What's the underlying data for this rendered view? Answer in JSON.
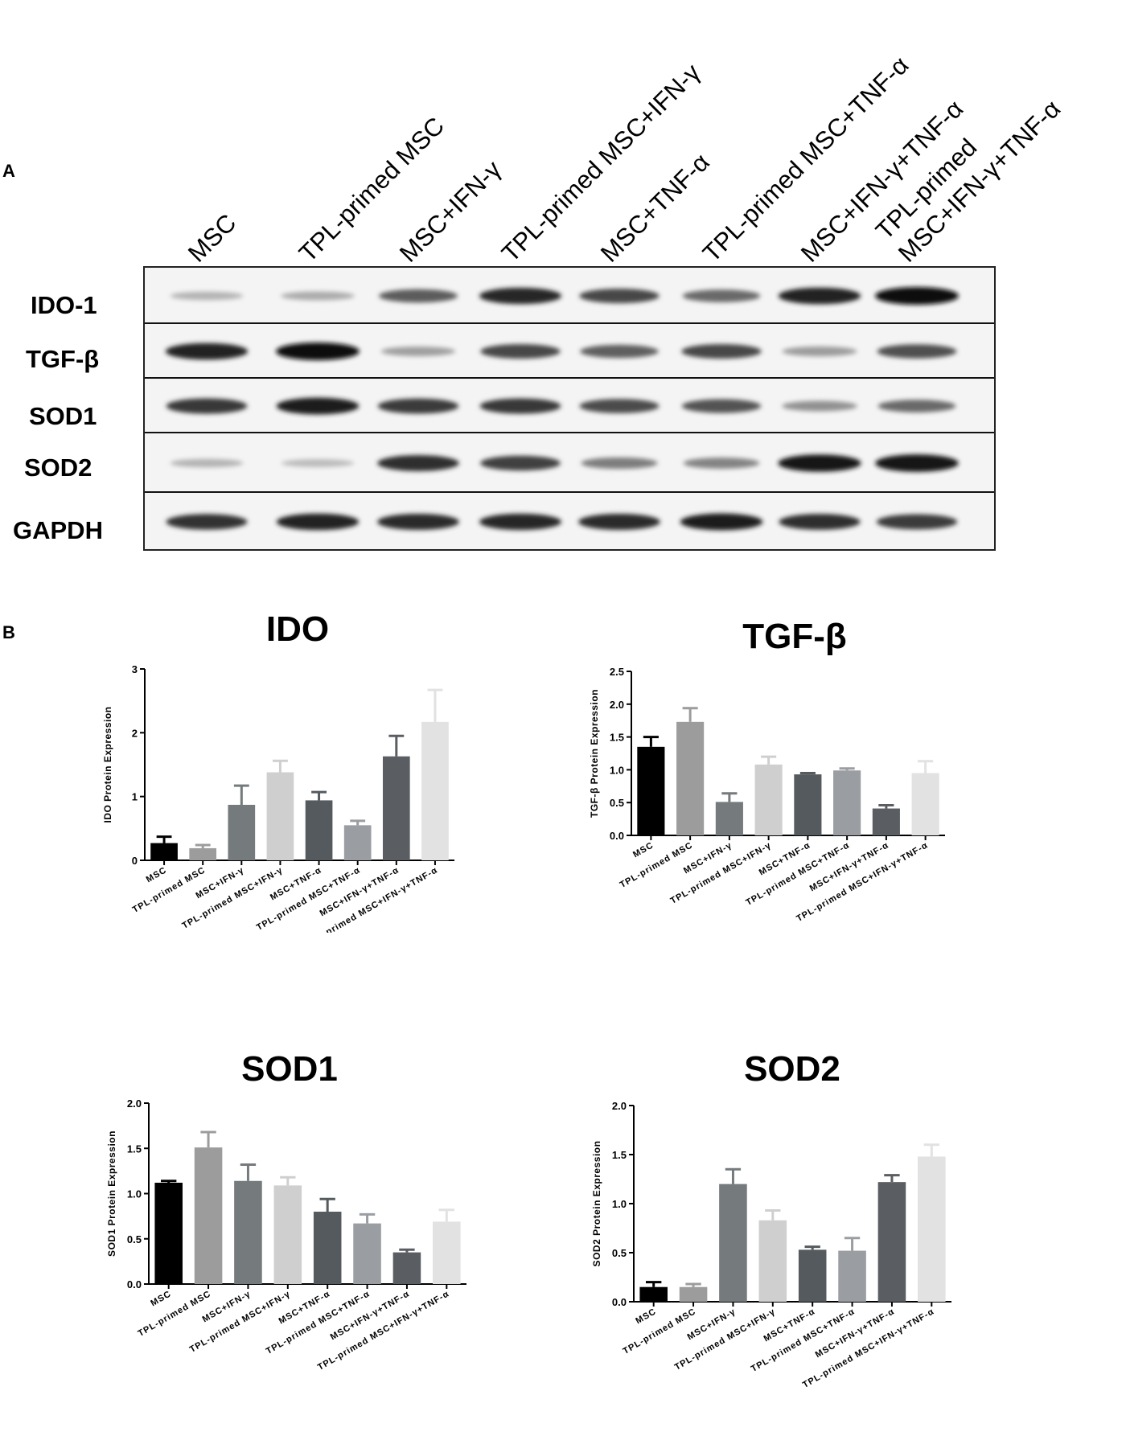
{
  "panel_a_label": "A",
  "panel_b_label": "B",
  "blot": {
    "lanes": [
      [
        "MSC"
      ],
      [
        "TPL-primed MSC"
      ],
      [
        "MSC+IFN-γ"
      ],
      [
        "TPL-primed MSC+IFN-γ"
      ],
      [
        "MSC+TNF-α"
      ],
      [
        "TPL-primed MSC+TNF-α"
      ],
      [
        "MSC+IFN-γ+TNF-α"
      ],
      [
        "TPL-primed",
        "MSC+IFN-γ+TNF-α"
      ]
    ],
    "rows": [
      {
        "label": "IDO-1",
        "intensity": [
          0.18,
          0.22,
          0.62,
          0.88,
          0.72,
          0.55,
          0.9,
          1.0
        ]
      },
      {
        "label": "TGF-β",
        "intensity": [
          0.9,
          1.0,
          0.28,
          0.72,
          0.6,
          0.72,
          0.3,
          0.68
        ]
      },
      {
        "label": "SOD1",
        "intensity": [
          0.8,
          0.92,
          0.78,
          0.8,
          0.7,
          0.66,
          0.35,
          0.55
        ]
      },
      {
        "label": "SOD2",
        "intensity": [
          0.18,
          0.14,
          0.85,
          0.75,
          0.45,
          0.42,
          0.95,
          0.98
        ]
      },
      {
        "label": "GAPDH",
        "intensity": [
          0.82,
          0.9,
          0.86,
          0.88,
          0.86,
          0.92,
          0.84,
          0.78
        ]
      }
    ]
  },
  "chart_data": [
    {
      "type": "bar",
      "title": "IDO",
      "ylabel": "IDO Protein Expression",
      "ylim": [
        0,
        3
      ],
      "yticks": [
        "0",
        "1",
        "2",
        "3"
      ],
      "categories": [
        "MSC",
        "TPL-primed MSC",
        "MSC+IFN-γ",
        "TPL-primed MSC+IFN-γ",
        "MSC+TNF-α",
        "TPL-primed MSC+TNF-α",
        "MSC+IFN-γ+TNF-α",
        "TPL-primed MSC+IFN-γ+TNF-α"
      ],
      "values": [
        0.27,
        0.19,
        0.87,
        1.38,
        0.94,
        0.55,
        1.63,
        2.17
      ],
      "errors": [
        0.1,
        0.05,
        0.3,
        0.18,
        0.13,
        0.07,
        0.32,
        0.5
      ],
      "colors": [
        "#000000",
        "#9c9c9c",
        "#757a7d",
        "#cfcfcf",
        "#555a5e",
        "#9a9da2",
        "#5a5e62",
        "#e2e2e2"
      ]
    },
    {
      "type": "bar",
      "title": "TGF-β",
      "ylabel": "TGF-β Protein Expression",
      "ylim": [
        0,
        2.5
      ],
      "yticks": [
        "0.0",
        "0.5",
        "1.0",
        "1.5",
        "2.0",
        "2.5"
      ],
      "categories": [
        "MSC",
        "TPL-primed MSC",
        "MSC+IFN-γ",
        "TPL-primed MSC+IFN-γ",
        "MSC+TNF-α",
        "TPL-primed MSC+TNF-α",
        "MSC+IFN-γ+TNF-α",
        "TPL-primed MSC+IFN-γ+TNF-α"
      ],
      "values": [
        1.35,
        1.73,
        0.51,
        1.08,
        0.93,
        0.99,
        0.41,
        0.95
      ],
      "errors": [
        0.15,
        0.21,
        0.13,
        0.12,
        0.02,
        0.03,
        0.05,
        0.18
      ],
      "colors": [
        "#000000",
        "#9c9c9c",
        "#757a7d",
        "#cfcfcf",
        "#555a5e",
        "#9a9da2",
        "#5a5e62",
        "#e2e2e2"
      ]
    },
    {
      "type": "bar",
      "title": "SOD1",
      "ylabel": "SOD1 Protein Expression",
      "ylim": [
        0,
        2
      ],
      "yticks": [
        "0.0",
        "0.5",
        "1.0",
        "1.5",
        "2.0"
      ],
      "categories": [
        "MSC",
        "TPL-primed MSC",
        "MSC+IFN-γ",
        "TPL-primed MSC+IFN-γ",
        "MSC+TNF-α",
        "TPL-primed MSC+TNF-α",
        "MSC+IFN-γ+TNF-α",
        "TPL-primed MSC+IFN-γ+TNF-α"
      ],
      "values": [
        1.12,
        1.51,
        1.14,
        1.09,
        0.8,
        0.67,
        0.35,
        0.69
      ],
      "errors": [
        0.02,
        0.17,
        0.18,
        0.09,
        0.14,
        0.1,
        0.03,
        0.13
      ],
      "colors": [
        "#000000",
        "#9c9c9c",
        "#757a7d",
        "#cfcfcf",
        "#555a5e",
        "#9a9da2",
        "#5a5e62",
        "#e2e2e2"
      ]
    },
    {
      "type": "bar",
      "title": "SOD2",
      "ylabel": "SOD2 Protein Expression",
      "ylim": [
        0,
        2
      ],
      "yticks": [
        "0.0",
        "0.5",
        "1.0",
        "1.5",
        "2.0"
      ],
      "categories": [
        "MSC",
        "TPL-primed MSC",
        "MSC+IFN-γ",
        "TPL-primed MSC+IFN-γ",
        "MSC+TNF-α",
        "TPL-primed MSC+TNF-α",
        "MSC+IFN-γ+TNF-α",
        "TPL-primed MSC+IFN-γ+TNF-α"
      ],
      "values": [
        0.15,
        0.15,
        1.2,
        0.83,
        0.53,
        0.52,
        1.22,
        1.48
      ],
      "errors": [
        0.05,
        0.03,
        0.15,
        0.1,
        0.03,
        0.13,
        0.07,
        0.12
      ],
      "colors": [
        "#000000",
        "#9c9c9c",
        "#757a7d",
        "#cfcfcf",
        "#555a5e",
        "#9a9da2",
        "#5a5e62",
        "#e2e2e2"
      ]
    }
  ]
}
